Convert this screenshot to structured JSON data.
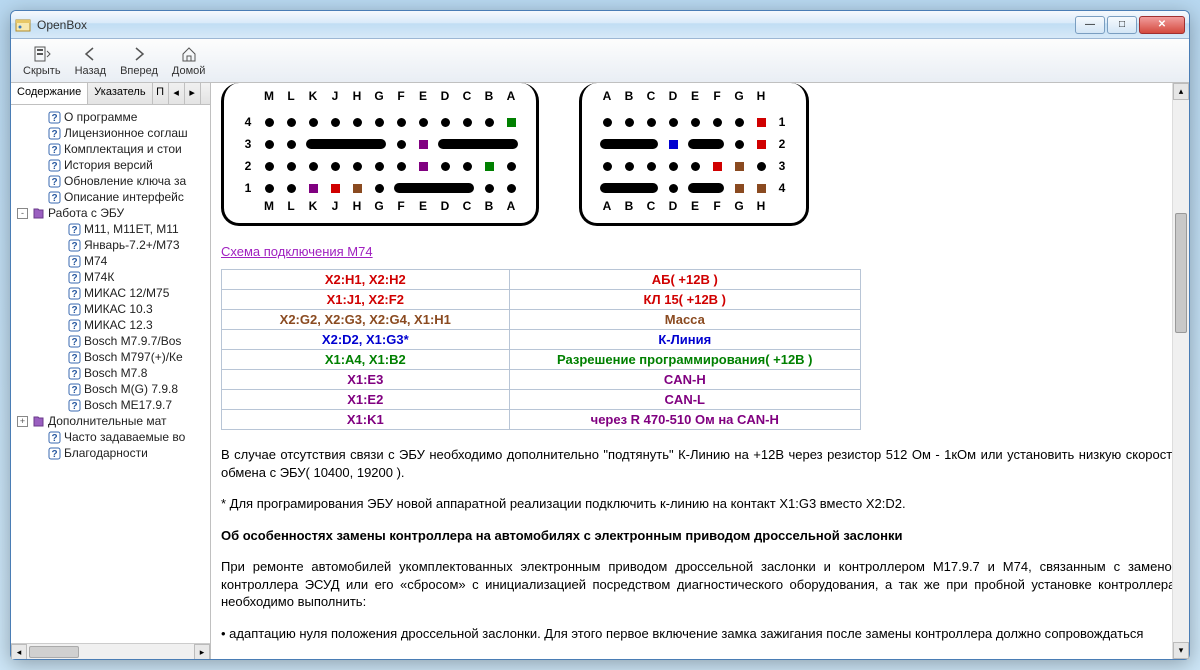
{
  "window": {
    "title": "OpenBox"
  },
  "toolbar": {
    "hide": "Скрыть",
    "back": "Назад",
    "forward": "Вперед",
    "home": "Домой"
  },
  "tabs": {
    "contents": "Содержание",
    "index": "Указатель",
    "p": "П"
  },
  "tree": [
    {
      "level": 1,
      "icon": "help",
      "label": "О программе"
    },
    {
      "level": 1,
      "icon": "help",
      "label": "Лицензионное соглаш"
    },
    {
      "level": 1,
      "icon": "help",
      "label": "Комплектация и стои"
    },
    {
      "level": 1,
      "icon": "help",
      "label": "История версий"
    },
    {
      "level": 1,
      "icon": "help",
      "label": "Обновление ключа за"
    },
    {
      "level": 1,
      "icon": "help",
      "label": "Описание интерфейс"
    },
    {
      "level": 0,
      "icon": "book",
      "label": "Работа с ЭБУ",
      "exp": "-"
    },
    {
      "level": 2,
      "icon": "help",
      "label": "М11, М11ЕТ, М11"
    },
    {
      "level": 2,
      "icon": "help",
      "label": "Январь-7.2+/М73"
    },
    {
      "level": 2,
      "icon": "help",
      "label": "М74"
    },
    {
      "level": 2,
      "icon": "help",
      "label": "М74К"
    },
    {
      "level": 2,
      "icon": "help",
      "label": "МИКАС 12/М75"
    },
    {
      "level": 2,
      "icon": "help",
      "label": "МИКАС 10.3"
    },
    {
      "level": 2,
      "icon": "help",
      "label": "МИКАС 12.3"
    },
    {
      "level": 2,
      "icon": "help",
      "label": "Bosch M7.9.7/Bos"
    },
    {
      "level": 2,
      "icon": "help",
      "label": "Bosch M797(+)/Ке"
    },
    {
      "level": 2,
      "icon": "help",
      "label": "Bosch M7.8"
    },
    {
      "level": 2,
      "icon": "help",
      "label": "Bosch M(G) 7.9.8"
    },
    {
      "level": 2,
      "icon": "help",
      "label": "Bosch ME17.9.7"
    },
    {
      "level": 0,
      "icon": "book",
      "label": "Дополнительные мат",
      "exp": "+"
    },
    {
      "level": 1,
      "icon": "help",
      "label": "Часто задаваемые во"
    },
    {
      "level": 1,
      "icon": "help",
      "label": "Благодарности"
    }
  ],
  "schema_link": "Схема подключения М74",
  "colors": {
    "red": "#d00000",
    "blue": "#0000d0",
    "green": "#008000",
    "purple": "#800080",
    "black": "#000000",
    "brown": "#8a4a20"
  },
  "pin_table": [
    {
      "left": "X2:H1, X2:H2",
      "right": "АБ( +12В )",
      "c": "red"
    },
    {
      "left": "X1:J1, X2:F2",
      "right": "КЛ 15( +12В )",
      "c": "red"
    },
    {
      "left": "X2:G2, X2:G3, X2:G4, X1:H1",
      "right": "Масса",
      "c": "brown"
    },
    {
      "left": "X2:D2, X1:G3*",
      "right": "К-Линия",
      "c": "blue"
    },
    {
      "left": "X1:A4, X1:B2",
      "right": "Разрешение программирования( +12В )",
      "c": "green"
    },
    {
      "left": "X1:E3",
      "right": "CAN-H",
      "c": "purple"
    },
    {
      "left": "X1:E2",
      "right": "CAN-L",
      "c": "purple"
    },
    {
      "left": "X1:K1",
      "right": "через R 470-510 Ом на CAN-H",
      "c": "purple"
    }
  ],
  "conn1": {
    "top": [
      "M",
      "L",
      "K",
      "J",
      "H",
      "G",
      "F",
      "E",
      "D",
      "C",
      "B",
      "A"
    ],
    "bottom": [
      "M",
      "L",
      "K",
      "J",
      "H",
      "G",
      "F",
      "E",
      "D",
      "C",
      "B",
      "A"
    ],
    "row4": [
      {
        "t": "d"
      },
      {
        "t": "d"
      },
      {
        "t": "d"
      },
      {
        "t": "d"
      },
      {
        "t": "d"
      },
      {
        "t": "d"
      },
      {
        "t": "d"
      },
      {
        "t": "d"
      },
      {
        "t": "d"
      },
      {
        "t": "d"
      },
      {
        "t": "d"
      },
      {
        "t": "s",
        "c": "#008000"
      }
    ],
    "row3": [
      {
        "t": "d"
      },
      {
        "t": "d"
      },
      {
        "t": "bar",
        "span": 4
      },
      {
        "t": "d"
      },
      {
        "t": "s",
        "c": "#800080"
      },
      {
        "t": "bar",
        "span": 4
      }
    ],
    "row2": [
      {
        "t": "d"
      },
      {
        "t": "d"
      },
      {
        "t": "d"
      },
      {
        "t": "d"
      },
      {
        "t": "d"
      },
      {
        "t": "d"
      },
      {
        "t": "d"
      },
      {
        "t": "s",
        "c": "#800080"
      },
      {
        "t": "d"
      },
      {
        "t": "d"
      },
      {
        "t": "s",
        "c": "#008000"
      },
      {
        "t": "d"
      }
    ],
    "row1": [
      {
        "t": "d"
      },
      {
        "t": "d"
      },
      {
        "t": "s",
        "c": "#800080"
      },
      {
        "t": "s",
        "c": "#d00000"
      },
      {
        "t": "s",
        "c": "#8a4a20"
      },
      {
        "t": "d"
      },
      {
        "t": "bar",
        "span": 4
      },
      {
        "t": "d"
      },
      {
        "t": "d"
      }
    ]
  },
  "conn2": {
    "top": [
      "A",
      "B",
      "C",
      "D",
      "E",
      "F",
      "G",
      "H"
    ],
    "bottom": [
      "A",
      "B",
      "C",
      "D",
      "E",
      "F",
      "G",
      "H"
    ],
    "row1": [
      {
        "t": "d"
      },
      {
        "t": "d"
      },
      {
        "t": "d"
      },
      {
        "t": "d"
      },
      {
        "t": "d"
      },
      {
        "t": "d"
      },
      {
        "t": "d"
      },
      {
        "t": "s",
        "c": "#d00000"
      }
    ],
    "row2": [
      {
        "t": "bar",
        "span": 3
      },
      {
        "t": "s",
        "c": "#0000d0"
      },
      {
        "t": "bar",
        "span": 2
      },
      {
        "t": "d"
      },
      {
        "t": "s",
        "c": "#d00000"
      }
    ],
    "row3": [
      {
        "t": "d"
      },
      {
        "t": "d"
      },
      {
        "t": "d"
      },
      {
        "t": "d"
      },
      {
        "t": "d"
      },
      {
        "t": "s",
        "c": "#d00000"
      },
      {
        "t": "s",
        "c": "#8a4a20"
      },
      {
        "t": "d"
      }
    ],
    "row4": [
      {
        "t": "bar",
        "span": 3
      },
      {
        "t": "d"
      },
      {
        "t": "bar",
        "span": 2
      },
      {
        "t": "s",
        "c": "#8a4a20"
      },
      {
        "t": "s",
        "c": "#8a4a20"
      }
    ]
  },
  "text": {
    "p1": "В случае отсутствия связи с ЭБУ необходимо дополнительно \"подтянуть\" К-Линию на +12В через резистор 512 Ом - 1кОм или установить низкую скорость обмена с ЭБУ( 10400, 19200 ).",
    "p2": "* Для програмирования ЭБУ новой аппаратной реализации подключить к-линию на контакт X1:G3 вместо X2:D2.",
    "h1": "Об особенностях замены контроллера на автомобилях с электронным приводом дроссельной заслонки",
    "p3": "При ремонте автомобилей укомплектованных электронным приводом дроссельной заслонки и контроллером М17.9.7 и М74, связанным с заменой контроллера ЭСУД или его «сбросом» с инициализацией посредством диагностического оборудования, а так же при пробной установке контроллера, необходимо выполнить:",
    "li1": "адаптацию нуля положения дроссельной заслонки. Для этого первое включение замка зажигания после замены контроллера должно сопровождаться"
  }
}
